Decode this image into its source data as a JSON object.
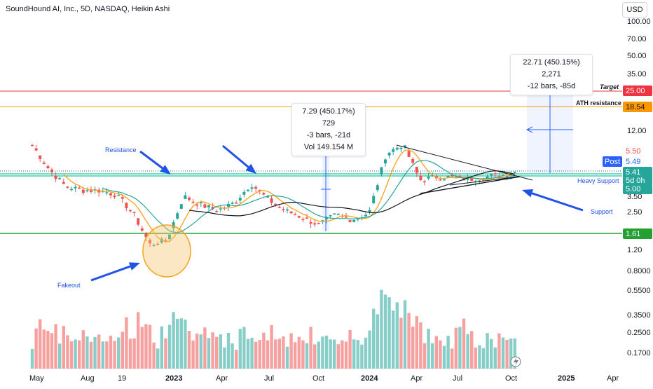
{
  "title": "SoundHound AI, Inc., 5D, NASDAQ, Heikin Ashi",
  "currency_button": "USD",
  "measure_boxes": [
    {
      "line1": "7.29 (450.17%) 729",
      "line2": "-3 bars, -21d",
      "line3": "Vol 149.154 M"
    },
    {
      "line1": "22.71 (450.15%) 2,271",
      "line2": "-12 bars, -85d"
    }
  ],
  "annotations": {
    "resistance": "Resistance",
    "fakeout": "Fakeout",
    "support": "Support",
    "heavy_support": "Heavy Support",
    "ath_resistance": "ATH resistance",
    "target": "Target"
  },
  "price_badges": {
    "target": "25.00",
    "ath": "18.54",
    "high": "5.50",
    "post_label": "Post",
    "post_value": "5.49",
    "last": "5.41",
    "countdown": "5d 0h",
    "low": "5.00",
    "bottom": "1.61"
  },
  "chart_data": {
    "type": "candlestick",
    "scale": "log",
    "y_ticks": [
      "100.00",
      "70.00",
      "50.00",
      "35.00",
      "25.00",
      "12.00",
      "3.50",
      "2.50",
      "1.61",
      "1.20",
      "0.8000",
      "0.5500",
      "0.3500",
      "0.2500",
      "0.1700"
    ],
    "x_ticks": [
      "May",
      "Aug",
      "19",
      "2023",
      "Apr",
      "Jul",
      "Oct",
      "2024",
      "Apr",
      "Jul",
      "Oct",
      "2025",
      "Apr"
    ],
    "horizontal_levels": [
      25.0,
      18.54,
      1.61
    ],
    "support_band": [
      5.0,
      5.5
    ],
    "approx_close_path": [
      [
        "2022-05",
        9.0
      ],
      [
        "2022-06",
        5.6
      ],
      [
        "2022-07",
        4.0
      ],
      [
        "2022-08",
        3.7
      ],
      [
        "2022-09",
        3.7
      ],
      [
        "2022-10",
        3.4
      ],
      [
        "2022-11",
        2.4
      ],
      [
        "2022-12",
        1.3
      ],
      [
        "2023-01",
        1.4
      ],
      [
        "2023-02",
        3.3
      ],
      [
        "2023-03",
        2.8
      ],
      [
        "2023-04",
        2.5
      ],
      [
        "2023-05",
        2.9
      ],
      [
        "2023-06",
        4.2
      ],
      [
        "2023-07",
        3.1
      ],
      [
        "2023-08",
        2.5
      ],
      [
        "2023-09",
        2.2
      ],
      [
        "2023-10",
        1.9
      ],
      [
        "2023-11",
        2.3
      ],
      [
        "2023-12",
        2.1
      ],
      [
        "2024-01",
        2.4
      ],
      [
        "2024-02",
        7.5
      ],
      [
        "2024-03",
        9.0
      ],
      [
        "2024-04",
        4.5
      ],
      [
        "2024-05",
        4.8
      ],
      [
        "2024-06",
        4.7
      ],
      [
        "2024-07",
        4.6
      ],
      [
        "2024-08",
        4.8
      ],
      [
        "2024-09",
        5.0
      ],
      [
        "2024-10",
        5.41
      ]
    ]
  },
  "colors": {
    "up": "#26a69a",
    "down": "#ef5350",
    "target_line": "#ef3340",
    "ath_line": "#ff9800",
    "bottom_line": "#24a033",
    "support_band": "#1ec3a3",
    "arrow": "#1e53e5",
    "ma_orange": "#f7a21b",
    "ma_green": "#26a69a",
    "measure": "#2962ff"
  }
}
